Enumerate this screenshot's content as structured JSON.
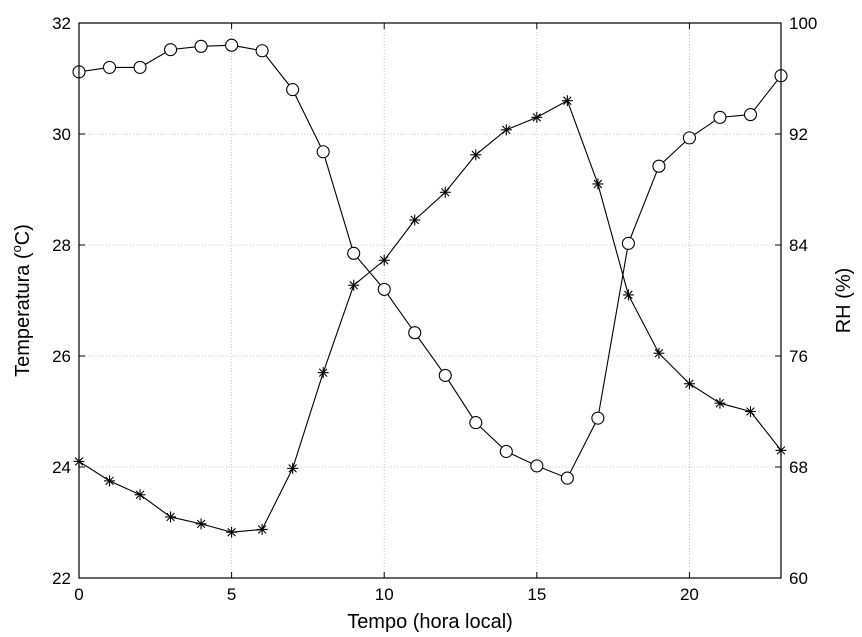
{
  "chart_data": {
    "type": "line",
    "title": "",
    "xlabel": "Tempo (hora local)",
    "ylabel": "Temperatura (",
    "ylabel_sup": "o",
    "ylabel_end": "C)",
    "y2label": "RH (%)",
    "xlim": [
      0,
      23
    ],
    "ylim": [
      22,
      32
    ],
    "y2lim": [
      60,
      100
    ],
    "xticks": [
      0,
      5,
      10,
      15,
      20
    ],
    "yticks": [
      22,
      24,
      26,
      28,
      30,
      32
    ],
    "y2ticks": [
      60,
      68,
      76,
      84,
      92,
      100
    ],
    "grid": true,
    "x": [
      0,
      1,
      2,
      3,
      4,
      5,
      6,
      7,
      8,
      9,
      10,
      11,
      12,
      13,
      14,
      15,
      16,
      17,
      18,
      19,
      20,
      21,
      22,
      23
    ],
    "series": [
      {
        "marker": "circle",
        "axis": "left",
        "values": [
          31.12,
          31.2,
          31.2,
          31.52,
          31.58,
          31.6,
          31.5,
          30.8,
          29.68,
          27.85,
          27.2,
          26.42,
          25.65,
          24.8,
          24.28,
          24.02,
          23.8,
          24.88,
          28.03,
          29.42,
          29.93,
          30.3,
          30.35,
          31.05
        ]
      },
      {
        "marker": "asterisk",
        "axis": "right",
        "values": [
          68.4,
          67.0,
          66.0,
          64.4,
          63.9,
          63.3,
          63.5,
          67.9,
          74.8,
          81.1,
          82.9,
          85.8,
          87.8,
          90.5,
          92.3,
          93.2,
          94.4,
          88.4,
          80.4,
          76.2,
          74.0,
          72.6,
          72.0,
          69.2
        ]
      }
    ]
  }
}
